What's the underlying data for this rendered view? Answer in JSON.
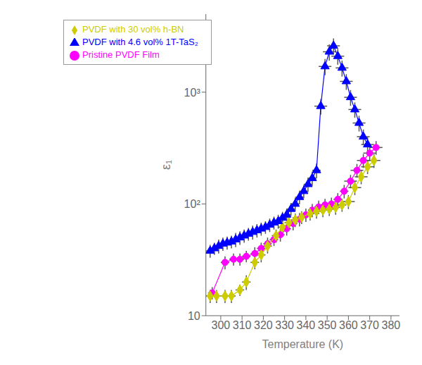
{
  "chart_data": {
    "type": "scatter",
    "xlabel": "Temperature (K)",
    "ylabel": "ε₁",
    "log": "y",
    "grid": false,
    "legend": "upper left",
    "xlim": [
      293,
      384
    ],
    "xticks": [
      300,
      310,
      320,
      330,
      340,
      350,
      360,
      370,
      380
    ],
    "ylim": [
      10,
      5000
    ],
    "yticks": [
      10,
      {
        "value": 100,
        "label": "10²"
      },
      {
        "value": 1000,
        "label": "10³"
      }
    ],
    "series": [
      {
        "name": "Pristine PVDF Film",
        "color": "#ff00ff",
        "marker": "circle",
        "line_style": "solid",
        "x": [
          296,
          302,
          306,
          309,
          312,
          316,
          319,
          322,
          325,
          328,
          331,
          334,
          337,
          340,
          343,
          346,
          349,
          352,
          355,
          358,
          361,
          364,
          367,
          370,
          373
        ],
        "values": [
          16,
          30,
          32,
          32,
          34,
          36,
          40,
          44,
          48,
          53,
          60,
          67,
          73,
          80,
          88,
          94,
          98,
          100,
          110,
          130,
          160,
          200,
          245,
          285,
          320
        ],
        "xerr": [
          2,
          2,
          2,
          2,
          2,
          2,
          2,
          2,
          2,
          2,
          2,
          2,
          2,
          2,
          2,
          2,
          2,
          2,
          2,
          2,
          3,
          3,
          3,
          3,
          3
        ],
        "yerr": [
          2,
          4,
          4,
          4,
          4,
          5,
          5,
          6,
          6,
          7,
          8,
          9,
          10,
          11,
          12,
          13,
          13,
          14,
          15,
          18,
          22,
          28,
          35,
          40,
          45
        ]
      },
      {
        "name": "PVDF  with 30 vol% h-BN",
        "color": "#cccc00",
        "marker": "diamond",
        "line_style": "solid",
        "x": [
          295,
          298,
          302,
          305,
          309,
          312,
          316,
          319,
          322,
          326,
          329,
          332,
          335,
          338,
          342,
          345,
          348,
          351,
          354,
          357,
          360,
          363,
          366,
          369,
          372
        ],
        "values": [
          15,
          15,
          15,
          15,
          17,
          20,
          30,
          35,
          42,
          52,
          62,
          68,
          72,
          76,
          82,
          86,
          88,
          90,
          93,
          98,
          105,
          140,
          175,
          215,
          245
        ],
        "xerr": [
          2,
          2,
          2,
          2,
          2,
          2,
          2,
          2,
          2,
          2,
          2,
          2,
          2,
          2,
          2,
          2,
          2,
          2,
          2,
          2,
          3,
          3,
          3,
          3,
          3
        ],
        "yerr": [
          2,
          2,
          2,
          2,
          2,
          3,
          4,
          5,
          6,
          7,
          8,
          9,
          10,
          10,
          11,
          12,
          12,
          12,
          13,
          13,
          15,
          20,
          25,
          30,
          35
        ]
      },
      {
        "name": "PVDF  with 4.6 vol% 1T-TaS₂",
        "color": "#0000ff",
        "marker": "triangle",
        "line_style": "solid",
        "x": [
          295,
          297,
          299,
          301,
          303,
          305,
          307,
          309,
          311,
          313,
          315,
          317,
          319,
          321,
          323,
          325,
          327,
          329,
          331,
          333,
          335,
          337,
          339,
          341,
          343,
          345,
          347,
          349,
          351,
          353,
          355,
          357,
          359,
          361,
          363,
          365,
          367,
          369
        ],
        "values": [
          38,
          40,
          42,
          44,
          45,
          46,
          48,
          50,
          52,
          54,
          56,
          58,
          60,
          62,
          65,
          68,
          70,
          75,
          80,
          90,
          100,
          115,
          130,
          150,
          170,
          200,
          750,
          1700,
          2300,
          2600,
          2100,
          1650,
          1250,
          900,
          700,
          530,
          400,
          340
        ],
        "xerr": [
          2,
          2,
          2,
          2,
          2,
          2,
          2,
          2,
          2,
          2,
          2,
          2,
          2,
          2,
          2,
          2,
          2,
          2,
          2,
          2,
          2,
          2,
          2,
          2,
          2,
          2,
          3,
          3,
          3,
          3,
          3,
          3,
          3,
          3,
          3,
          3,
          3,
          3
        ],
        "yerr": [
          5,
          5,
          6,
          6,
          6,
          6,
          7,
          7,
          7,
          7,
          8,
          8,
          8,
          8,
          9,
          9,
          10,
          10,
          11,
          12,
          14,
          16,
          18,
          22,
          25,
          30,
          120,
          280,
          380,
          430,
          340,
          270,
          200,
          145,
          110,
          85,
          64,
          54
        ]
      }
    ]
  }
}
